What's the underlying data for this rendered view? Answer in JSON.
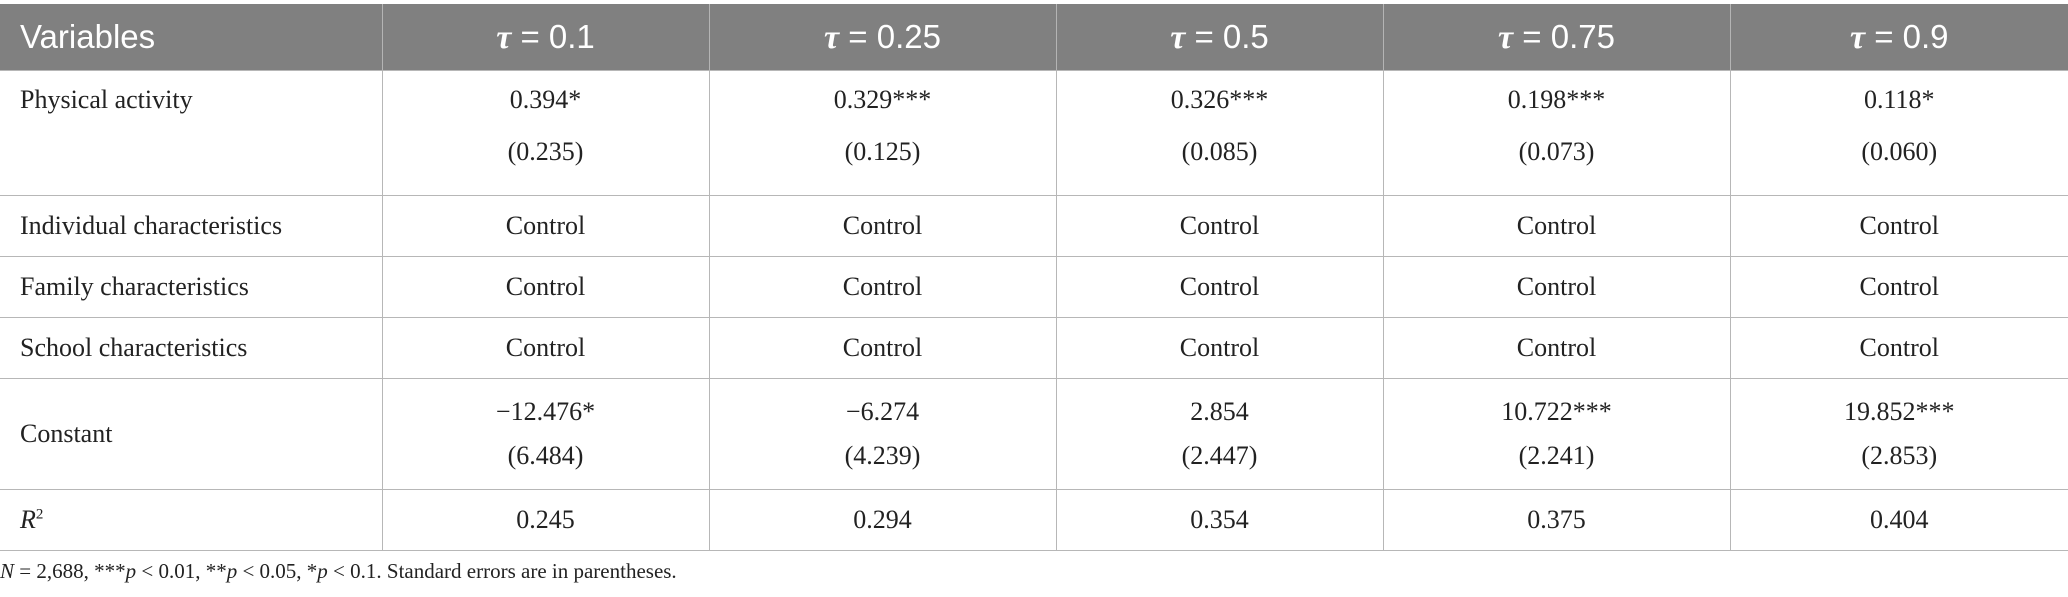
{
  "table": {
    "header": {
      "label": "Variables",
      "tau_symbol": "τ",
      "quantiles": [
        "= 0.1",
        "= 0.25",
        "= 0.5",
        "= 0.75",
        "= 0.9"
      ]
    },
    "rows": {
      "physical_activity": {
        "label": "Physical activity",
        "estimates": [
          "0.394*",
          "0.329***",
          "0.326***",
          "0.198***",
          "0.118*"
        ],
        "std_errors": [
          "(0.235)",
          "(0.125)",
          "(0.085)",
          "(0.073)",
          "(0.060)"
        ]
      },
      "individual": {
        "label": "Individual characteristics",
        "values": [
          "Control",
          "Control",
          "Control",
          "Control",
          "Control"
        ]
      },
      "family": {
        "label": "Family characteristics",
        "values": [
          "Control",
          "Control",
          "Control",
          "Control",
          "Control"
        ]
      },
      "school": {
        "label": "School characteristics",
        "values": [
          "Control",
          "Control",
          "Control",
          "Control",
          "Control"
        ]
      },
      "constant": {
        "label": "Constant",
        "estimates": [
          "−12.476*",
          "−6.274",
          "2.854",
          "10.722***",
          "19.852***"
        ],
        "std_errors": [
          "(6.484)",
          "(4.239)",
          "(2.447)",
          "(2.241)",
          "(2.853)"
        ]
      },
      "r2": {
        "label": "R",
        "label_sup": "2",
        "values": [
          "0.245",
          "0.294",
          "0.354",
          "0.375",
          "0.404"
        ]
      }
    }
  },
  "footnote": {
    "n_label": "N",
    "n_value": " = 2,688, ***",
    "p1": "p",
    " t1": " < 0.01, **",
    "p2": "p",
    "t2": " < 0.05, *",
    "p3": "p",
    "t3": " < 0.1. Standard errors are in parentheses."
  }
}
